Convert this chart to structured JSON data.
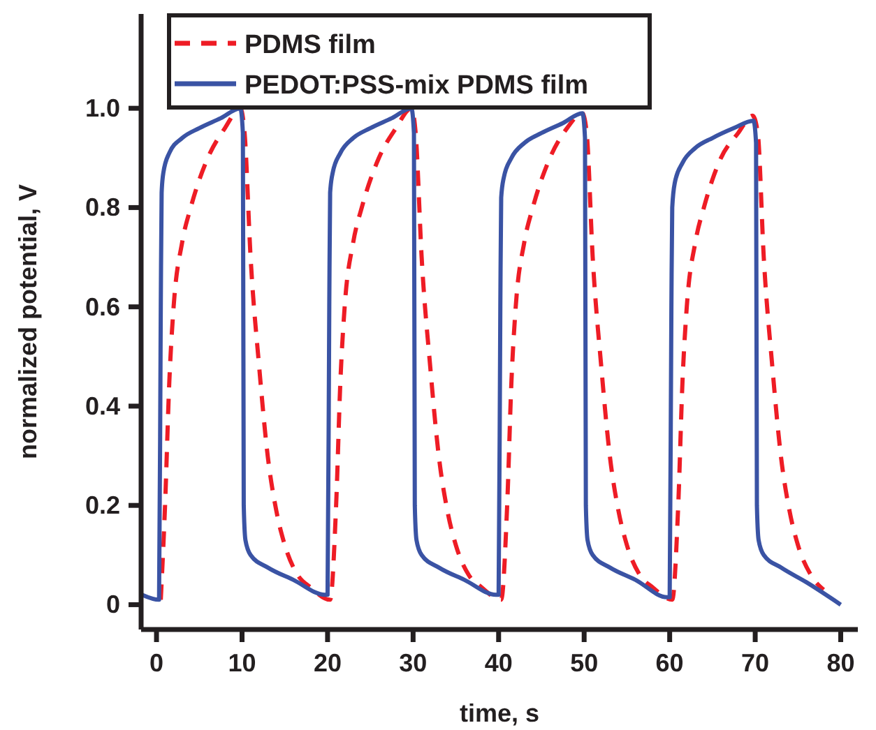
{
  "chart_data": {
    "type": "line",
    "xlabel": "time, s",
    "ylabel": "normalized potential, V",
    "xlim": [
      -1.8,
      82
    ],
    "ylim": [
      -0.05,
      1.19
    ],
    "xticks": [
      0,
      10,
      20,
      30,
      40,
      50,
      60,
      70,
      80
    ],
    "yticks": [
      0,
      {
        "value": 0.2,
        "label": "0.2"
      },
      {
        "value": 0.4,
        "label": "0.4"
      },
      {
        "value": 0.6,
        "label": "0.6"
      },
      {
        "value": 0.8,
        "label": "0.8"
      },
      {
        "value": 1,
        "label": "1.0"
      }
    ],
    "legend": "top left",
    "grid": false,
    "series": [
      {
        "name": "PDMS film",
        "color": "#ee1c25",
        "line_style": "dashed",
        "x": [
          0.5,
          1,
          1.5,
          2,
          3,
          4,
          6,
          8,
          9.8,
          10.3,
          11,
          12,
          13,
          14,
          15,
          16.5,
          18,
          20.3,
          21,
          21.5,
          22,
          23,
          24,
          26,
          28,
          29.8,
          30.3,
          31,
          32,
          33,
          34,
          35,
          36.5,
          38,
          40.3,
          41,
          41.5,
          42,
          43,
          44,
          46,
          48,
          49.8,
          50.3,
          51,
          52,
          53,
          54,
          55,
          56.5,
          58,
          60.3,
          61,
          61.5,
          62,
          63,
          64,
          66,
          68,
          69.7,
          70.3,
          71,
          72,
          73,
          74,
          75,
          76.5,
          78
        ],
        "values": [
          0.01,
          0.2,
          0.45,
          0.6,
          0.73,
          0.8,
          0.9,
          0.96,
          1.0,
          0.95,
          0.7,
          0.48,
          0.3,
          0.19,
          0.12,
          0.06,
          0.035,
          0.01,
          0.2,
          0.45,
          0.6,
          0.73,
          0.8,
          0.9,
          0.96,
          1.0,
          0.95,
          0.7,
          0.48,
          0.3,
          0.19,
          0.12,
          0.06,
          0.035,
          0.01,
          0.2,
          0.45,
          0.6,
          0.73,
          0.8,
          0.9,
          0.96,
          0.99,
          0.95,
          0.7,
          0.48,
          0.3,
          0.19,
          0.12,
          0.06,
          0.035,
          0.01,
          0.2,
          0.45,
          0.6,
          0.73,
          0.8,
          0.9,
          0.95,
          0.985,
          0.95,
          0.7,
          0.48,
          0.3,
          0.19,
          0.12,
          0.06,
          0.03
        ]
      },
      {
        "name": "PEDOT:PSS-mix PDMS film",
        "color": "#3a53a4",
        "line_style": "solid",
        "x": [
          -1.7,
          0.3,
          0.5,
          0.6,
          0.8,
          1.5,
          3,
          5,
          7.5,
          9.8,
          10.1,
          10.2,
          10.4,
          11,
          13,
          16,
          19.7,
          20,
          20.2,
          20.3,
          20.6,
          21.5,
          23,
          25,
          27.5,
          29.8,
          30.1,
          30.2,
          30.4,
          31,
          33,
          36,
          39.7,
          40,
          40.2,
          40.3,
          40.6,
          41.5,
          43,
          45,
          47.5,
          49.8,
          50.1,
          50.2,
          50.4,
          51,
          53,
          56,
          59.7,
          60,
          60.2,
          60.3,
          60.6,
          61.5,
          63,
          65,
          67.5,
          69.8,
          70.1,
          70.2,
          70.4,
          71,
          73,
          76,
          80
        ],
        "values": [
          0.02,
          0.01,
          0.6,
          0.83,
          0.87,
          0.91,
          0.94,
          0.96,
          0.98,
          1.0,
          0.95,
          0.2,
          0.13,
          0.1,
          0.075,
          0.05,
          0.02,
          0.02,
          0.6,
          0.83,
          0.87,
          0.91,
          0.94,
          0.96,
          0.98,
          1.0,
          0.95,
          0.2,
          0.13,
          0.1,
          0.075,
          0.05,
          0.02,
          0.02,
          0.6,
          0.82,
          0.86,
          0.9,
          0.93,
          0.95,
          0.97,
          0.99,
          0.94,
          0.2,
          0.13,
          0.1,
          0.075,
          0.05,
          0.015,
          0.015,
          0.6,
          0.8,
          0.85,
          0.89,
          0.92,
          0.94,
          0.96,
          0.975,
          0.93,
          0.2,
          0.13,
          0.1,
          0.075,
          0.045,
          0.0
        ]
      }
    ]
  }
}
